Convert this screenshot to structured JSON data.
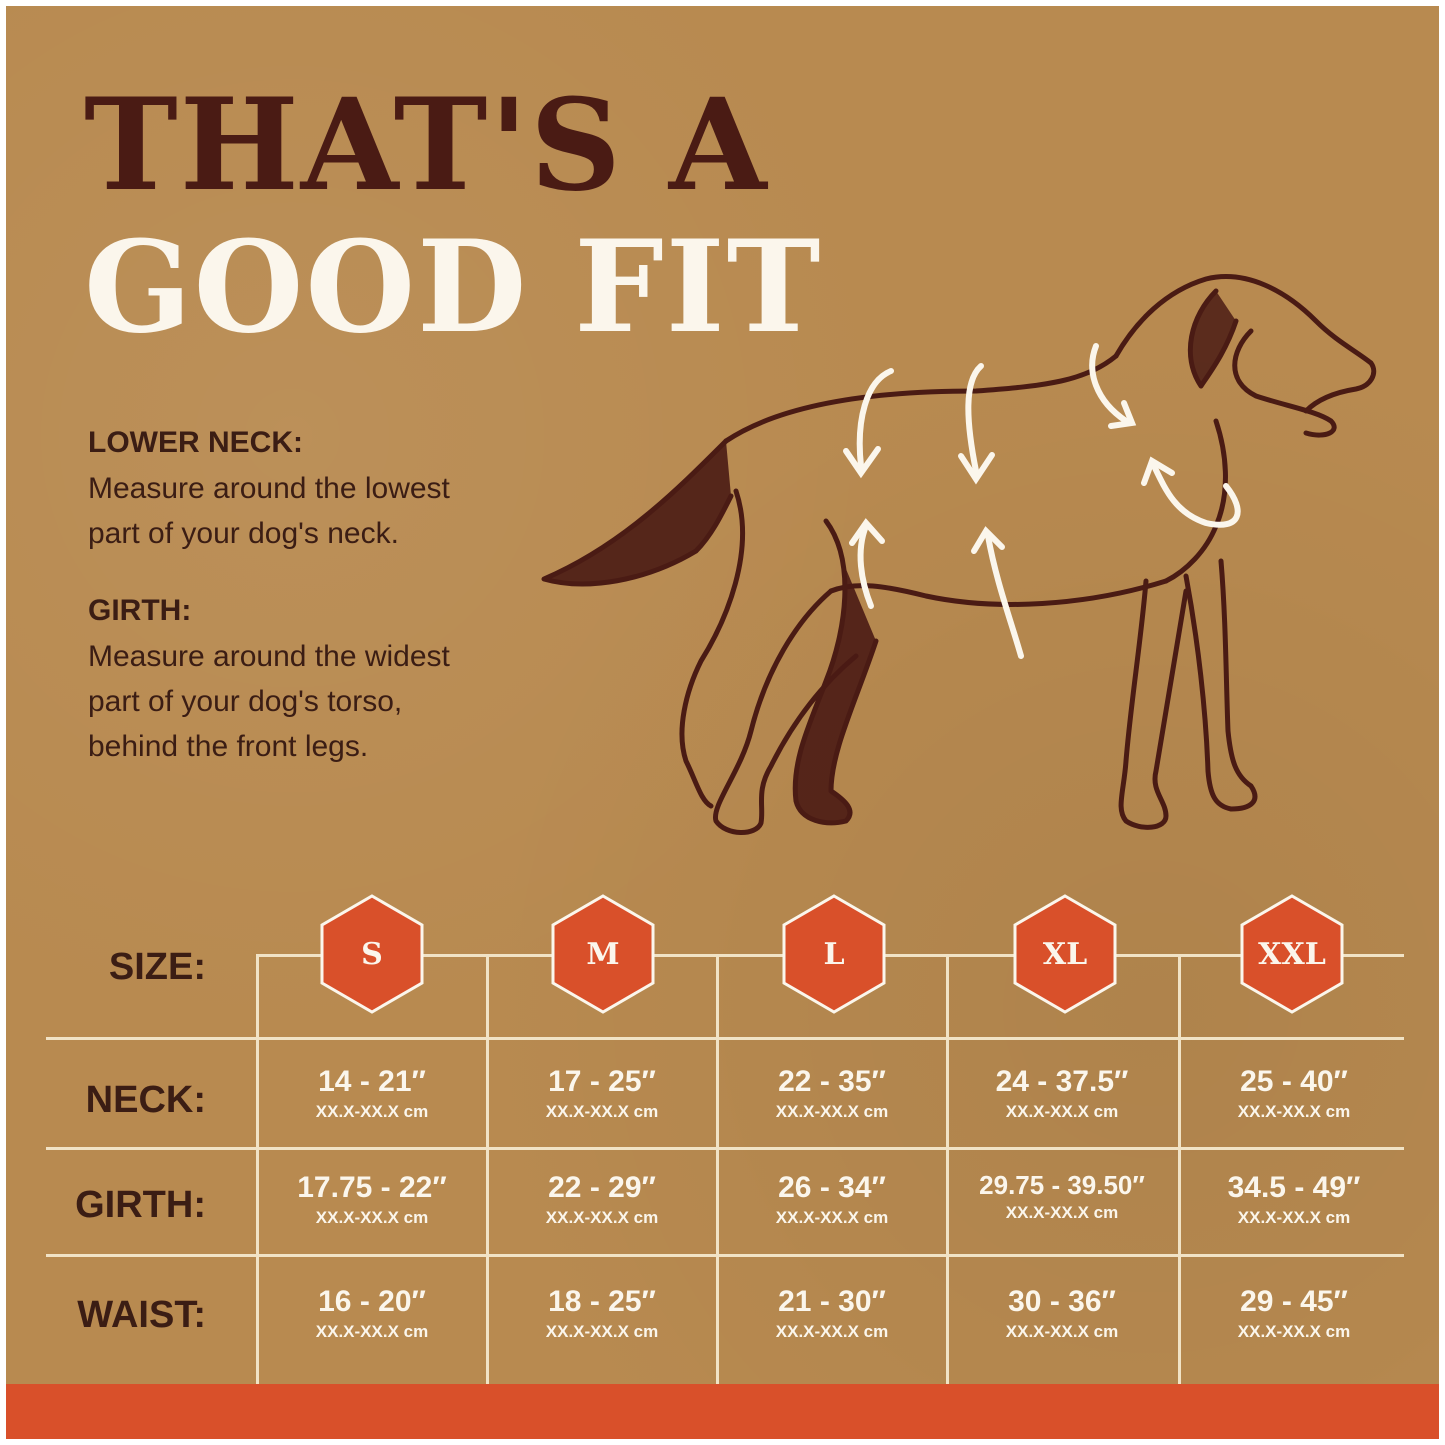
{
  "title": {
    "line1": "THAT'S A",
    "line2": "GOOD FIT"
  },
  "instructions": [
    {
      "heading": "LOWER NECK:",
      "lines": [
        "Measure around the lowest",
        "part of your dog's neck."
      ]
    },
    {
      "heading": "GIRTH:",
      "lines": [
        "Measure around the widest",
        "part of your dog's torso,",
        "behind the front legs."
      ]
    }
  ],
  "illustration": {
    "subject": "dog-with-measurement-arrows-icon"
  },
  "size_chart": {
    "row_labels": {
      "size": "SIZE:",
      "neck": "NECK:",
      "girth": "GIRTH:",
      "waist": "WAIST:"
    },
    "sizes": [
      "S",
      "M",
      "L",
      "XL",
      "XXL"
    ],
    "neck": [
      {
        "inches": "14 - 21″",
        "cm": "XX.X-XX.X cm"
      },
      {
        "inches": "17 - 25″",
        "cm": "XX.X-XX.X cm"
      },
      {
        "inches": "22 - 35″",
        "cm": "XX.X-XX.X cm"
      },
      {
        "inches": "24 - 37.5″",
        "cm": "XX.X-XX.X cm"
      },
      {
        "inches": "25 - 40″",
        "cm": "XX.X-XX.X cm"
      }
    ],
    "girth": [
      {
        "inches": "17.75 - 22″",
        "cm": "XX.X-XX.X cm"
      },
      {
        "inches": "22 - 29″",
        "cm": "XX.X-XX.X cm"
      },
      {
        "inches": "26 - 34″",
        "cm": "XX.X-XX.X cm"
      },
      {
        "inches": "29.75 - 39.50″",
        "cm": "XX.X-XX.X cm"
      },
      {
        "inches": "34.5 - 49″",
        "cm": "XX.X-XX.X cm"
      }
    ],
    "waist": [
      {
        "inches": "16 - 20″",
        "cm": "XX.X-XX.X cm"
      },
      {
        "inches": "18 - 25″",
        "cm": "XX.X-XX.X cm"
      },
      {
        "inches": "21 - 30″",
        "cm": "XX.X-XX.X cm"
      },
      {
        "inches": "30 - 36″",
        "cm": "XX.X-XX.X cm"
      },
      {
        "inches": "29 - 45″",
        "cm": "XX.X-XX.X cm"
      }
    ]
  },
  "colors": {
    "background": "#b88a50",
    "title_dark": "#4a1b14",
    "title_light": "#fbf6ec",
    "accent": "#d9502a",
    "grid": "#f1e3c6"
  }
}
